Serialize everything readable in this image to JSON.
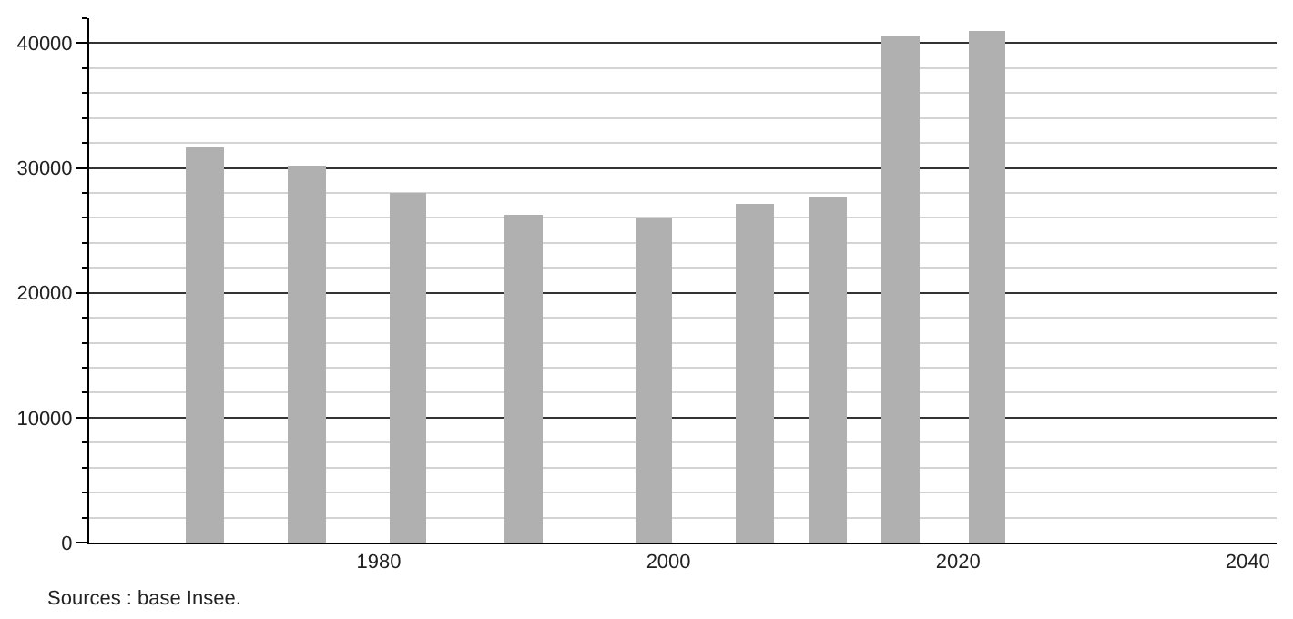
{
  "chart_data": {
    "type": "bar",
    "x": [
      1968,
      1975,
      1982,
      1990,
      1999,
      2006,
      2011,
      2016,
      2022
    ],
    "values": [
      31600,
      30200,
      28000,
      26200,
      25900,
      27100,
      27700,
      40600,
      41000
    ],
    "color": "#b0b0b0",
    "xlim": [
      1960,
      2042
    ],
    "xticks": [
      1980,
      2000,
      2020,
      2040
    ],
    "ylim": [
      0,
      42000
    ],
    "yticks": [
      0,
      {
        "value": 2000,
        "label": null
      },
      {
        "value": 4000,
        "label": null
      },
      {
        "value": 6000,
        "label": null
      },
      {
        "value": 8000,
        "label": null
      },
      10000,
      {
        "value": 12000,
        "label": null
      },
      {
        "value": 14000,
        "label": null
      },
      {
        "value": 16000,
        "label": null
      },
      {
        "value": 18000,
        "label": null
      },
      20000,
      {
        "value": 22000,
        "label": null
      },
      {
        "value": 24000,
        "label": null
      },
      {
        "value": 26000,
        "label": null
      },
      {
        "value": 28000,
        "label": null
      },
      30000,
      {
        "value": 32000,
        "label": null
      },
      {
        "value": 34000,
        "label": null
      },
      {
        "value": 36000,
        "label": null
      },
      {
        "value": 38000,
        "label": null
      },
      40000,
      {
        "value": 42000,
        "label": null
      }
    ],
    "grid": "y",
    "annotations": [
      "Sources : base Insee."
    ]
  }
}
